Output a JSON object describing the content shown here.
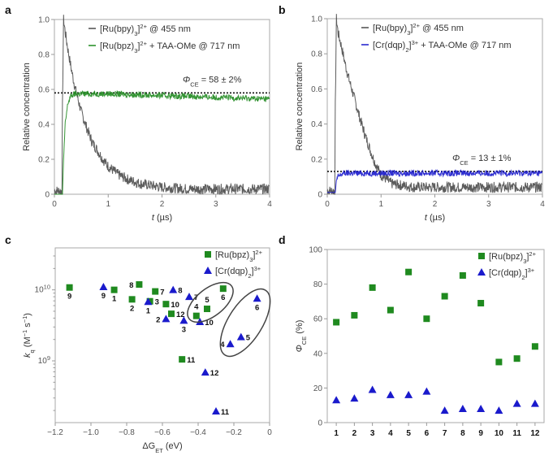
{
  "colors": {
    "gray": "#4a4a4a",
    "green": "#1f8a1f",
    "blue": "#1a1acc",
    "dotted": "#111111"
  },
  "chart_data": [
    {
      "panel": "a",
      "type": "line",
      "xlabel": [
        {
          "t": "t",
          "i": true
        },
        {
          "t": " (µs)"
        }
      ],
      "ylabel": [
        {
          "t": "Relative concentration"
        }
      ],
      "xlim": [
        0,
        4
      ],
      "ylim": [
        0,
        1.0
      ],
      "xticks": [
        0,
        1,
        2,
        3,
        4
      ],
      "xticklabels": [
        "0",
        "1",
        "2",
        "3",
        "4"
      ],
      "yticks": [
        0,
        0.2,
        0.4,
        0.6,
        0.8,
        1.0
      ],
      "yticklabels": [
        "0",
        "0.2",
        "0.4",
        "0.6",
        "0.8",
        "1.0"
      ],
      "legend_placement": "top",
      "annotation": {
        "text": [
          {
            "t": "Φ",
            "i": true
          },
          {
            "t": "CE",
            "sub": true
          },
          {
            "t": " = 58 ± 2%"
          }
        ],
        "level": 0.58
      },
      "x": [
        0,
        0.1,
        0.14,
        0.15,
        0.17,
        0.2,
        0.25,
        0.3,
        0.35,
        0.4,
        0.5,
        0.6,
        0.7,
        0.8,
        0.9,
        1.0,
        1.2,
        1.4,
        1.6,
        1.8,
        2.0,
        2.5,
        3.0,
        3.5,
        4.0
      ],
      "series": [
        {
          "name": [
            {
              "t": "[Ru(bpy)"
            },
            {
              "t": "3",
              "sub": true
            },
            {
              "t": "]"
            },
            {
              "t": "2+",
              "sup": true
            },
            {
              "t": " @ 455 nm"
            }
          ],
          "color": "gray",
          "values": [
            0.02,
            0.02,
            0.02,
            0.5,
            1.0,
            0.93,
            0.83,
            0.74,
            0.66,
            0.59,
            0.47,
            0.38,
            0.3,
            0.25,
            0.2,
            0.16,
            0.11,
            0.08,
            0.06,
            0.05,
            0.04,
            0.03,
            0.03,
            0.03,
            0.03
          ]
        },
        {
          "name": [
            {
              "t": "[Ru(bpz)"
            },
            {
              "t": "3",
              "sub": true
            },
            {
              "t": "]"
            },
            {
              "t": "2+",
              "sup": true
            },
            {
              "t": " + TAA-OMe @ 717 nm"
            }
          ],
          "color": "green",
          "values": [
            0,
            0,
            0,
            0,
            0.2,
            0.4,
            0.52,
            0.56,
            0.57,
            0.575,
            0.575,
            0.575,
            0.575,
            0.575,
            0.575,
            0.575,
            0.573,
            0.571,
            0.569,
            0.567,
            0.565,
            0.56,
            0.555,
            0.55,
            0.545
          ]
        }
      ]
    },
    {
      "panel": "b",
      "type": "line",
      "xlabel": [
        {
          "t": "t",
          "i": true
        },
        {
          "t": " (µs)"
        }
      ],
      "ylabel": [
        {
          "t": "Relative concentration"
        }
      ],
      "xlim": [
        0,
        4
      ],
      "ylim": [
        0,
        1.0
      ],
      "xticks": [
        0,
        1,
        2,
        3,
        4
      ],
      "xticklabels": [
        "0",
        "1",
        "2",
        "3",
        "4"
      ],
      "yticks": [
        0,
        0.2,
        0.4,
        0.6,
        0.8,
        1.0
      ],
      "yticklabels": [
        "0",
        "0.2",
        "0.4",
        "0.6",
        "0.8",
        "1.0"
      ],
      "legend_placement": "top",
      "annotation": {
        "text": [
          {
            "t": "Φ",
            "i": true
          },
          {
            "t": "CE",
            "sub": true
          },
          {
            "t": " = 13 ± 1%"
          }
        ],
        "level": 0.13
      },
      "x": [
        0,
        0.1,
        0.14,
        0.15,
        0.17,
        0.2,
        0.25,
        0.3,
        0.35,
        0.4,
        0.5,
        0.6,
        0.7,
        0.8,
        0.9,
        1.0,
        1.2,
        1.4,
        1.6,
        1.8,
        2.0,
        2.5,
        3.0,
        3.5,
        4.0
      ],
      "series": [
        {
          "name": [
            {
              "t": "[Ru(bpy)"
            },
            {
              "t": "3",
              "sub": true
            },
            {
              "t": "]"
            },
            {
              "t": "2+",
              "sup": true
            },
            {
              "t": " @ 455 nm"
            }
          ],
          "color": "gray",
          "values": [
            0.02,
            0.02,
            0.02,
            0.5,
            1.0,
            0.92,
            0.86,
            0.79,
            0.72,
            0.66,
            0.55,
            0.44,
            0.34,
            0.25,
            0.17,
            0.11,
            0.06,
            0.05,
            0.04,
            0.04,
            0.04,
            0.04,
            0.04,
            0.04,
            0.04
          ]
        },
        {
          "name": [
            {
              "t": "[Cr(dqp)"
            },
            {
              "t": "2",
              "sub": true
            },
            {
              "t": "]"
            },
            {
              "t": "3+",
              "sup": true
            },
            {
              "t": " + TAA-OMe @ 717 nm"
            }
          ],
          "color": "blue",
          "values": [
            0.01,
            0.01,
            0.01,
            0.01,
            0.08,
            0.1,
            0.11,
            0.12,
            0.12,
            0.12,
            0.12,
            0.12,
            0.12,
            0.12,
            0.12,
            0.12,
            0.12,
            0.12,
            0.12,
            0.12,
            0.12,
            0.12,
            0.12,
            0.12,
            0.12
          ]
        }
      ]
    },
    {
      "panel": "c",
      "type": "scatter",
      "xlabel": [
        {
          "t": "ΔG"
        },
        {
          "t": "ET",
          "sub": true
        },
        {
          "t": " (eV)"
        }
      ],
      "ylabel": [
        {
          "t": "k",
          "i": true
        },
        {
          "t": "q",
          "sub": true
        },
        {
          "t": " (M"
        },
        {
          "t": "−1",
          "sup": true
        },
        {
          "t": " s"
        },
        {
          "t": "−1",
          "sup": true
        },
        {
          "t": ")"
        }
      ],
      "xlim": [
        -1.2,
        0
      ],
      "ylim": [
        135000000.0,
        39000000000.0
      ],
      "yscale": "log",
      "xticks": [
        -1.2,
        -1.0,
        -0.8,
        -0.6,
        -0.4,
        -0.2,
        0
      ],
      "xticklabels": [
        "−1.2",
        "−1.0",
        "−0.8",
        "−0.6",
        "−0.4",
        "−0.2",
        "0"
      ],
      "yticks": [
        1000000000.0,
        10000000000.0
      ],
      "yticklabels": [
        [
          "10",
          "9"
        ],
        [
          "10",
          "10"
        ]
      ],
      "legend_placement": "top-right",
      "series": [
        {
          "name": [
            {
              "t": "[Ru(bpz)"
            },
            {
              "t": "3",
              "sub": true
            },
            {
              "t": "]"
            },
            {
              "t": "2+",
              "sup": true
            }
          ],
          "color": "green",
          "marker": "square",
          "points": [
            {
              "label": "9",
              "x": -1.12,
              "y": 10800000000.0,
              "label_pos": "below"
            },
            {
              "label": "1",
              "x": -0.87,
              "y": 10000000000.0,
              "label_pos": "below"
            },
            {
              "label": "8",
              "x": -0.73,
              "y": 11900000000.0,
              "label_pos": "left"
            },
            {
              "label": "2",
              "x": -0.77,
              "y": 7350000000.0,
              "label_pos": "below"
            },
            {
              "label": "3",
              "x": -0.67,
              "y": 6900000000.0,
              "label_pos": "right"
            },
            {
              "label": "7",
              "x": -0.64,
              "y": 9500000000.0,
              "label_pos": "right"
            },
            {
              "label": "10",
              "x": -0.58,
              "y": 6300000000.0,
              "label_pos": "right"
            },
            {
              "label": "12",
              "x": -0.55,
              "y": 4600000000.0,
              "label_pos": "right"
            },
            {
              "label": "11",
              "x": -0.49,
              "y": 1050000000.0,
              "label_pos": "right"
            },
            {
              "label": "4",
              "x": -0.41,
              "y": 4300000000.0,
              "label_pos": "above"
            },
            {
              "label": "5",
              "x": -0.35,
              "y": 5400000000.0,
              "label_pos": "above"
            },
            {
              "label": "6",
              "x": -0.26,
              "y": 10400000000.0,
              "label_pos": "below"
            }
          ]
        },
        {
          "name": [
            {
              "t": "[Cr(dqp)"
            },
            {
              "t": "2",
              "sub": true
            },
            {
              "t": "]"
            },
            {
              "t": "3+",
              "sup": true
            }
          ],
          "color": "blue",
          "marker": "triangle",
          "points": [
            {
              "label": "9",
              "x": -0.93,
              "y": 11000000000.0,
              "label_pos": "below"
            },
            {
              "label": "1",
              "x": -0.68,
              "y": 6800000000.0,
              "label_pos": "below"
            },
            {
              "label": "8",
              "x": -0.54,
              "y": 10000000000.0,
              "label_pos": "right"
            },
            {
              "label": "7",
              "x": -0.45,
              "y": 8000000000.0,
              "label_pos": "right"
            },
            {
              "label": "2",
              "x": -0.58,
              "y": 3900000000.0,
              "label_pos": "left"
            },
            {
              "label": "3",
              "x": -0.48,
              "y": 3700000000.0,
              "label_pos": "below"
            },
            {
              "label": "10",
              "x": -0.39,
              "y": 3550000000.0,
              "label_pos": "right"
            },
            {
              "label": "4",
              "x": -0.22,
              "y": 1730000000.0,
              "label_pos": "left"
            },
            {
              "label": "5",
              "x": -0.16,
              "y": 2170000000.0,
              "label_pos": "right"
            },
            {
              "label": "6",
              "x": -0.07,
              "y": 7550000000.0,
              "label_pos": "below"
            },
            {
              "label": "12",
              "x": -0.36,
              "y": 690000000.0,
              "label_pos": "right"
            },
            {
              "label": "11",
              "x": -0.3,
              "y": 195000000.0,
              "label_pos": "right"
            }
          ]
        }
      ]
    },
    {
      "panel": "d",
      "type": "scatter",
      "xlabel": [],
      "ylabel": [
        {
          "t": "Φ",
          "i": true
        },
        {
          "t": "CE",
          "sub": true
        },
        {
          "t": " (%)"
        }
      ],
      "xlim": [
        0.5,
        12.5
      ],
      "ylim": [
        0,
        100
      ],
      "categories": [
        "1",
        "2",
        "3",
        "4",
        "5",
        "6",
        "7",
        "8",
        "9",
        "10",
        "11",
        "12"
      ],
      "yticks": [
        0,
        20,
        40,
        60,
        80,
        100
      ],
      "yticklabels": [
        "0",
        "20",
        "40",
        "60",
        "80",
        "100"
      ],
      "legend_placement": "top-right",
      "series": [
        {
          "name": [
            {
              "t": "[Ru(bpz)"
            },
            {
              "t": "3",
              "sub": true
            },
            {
              "t": "]"
            },
            {
              "t": "2+",
              "sup": true
            }
          ],
          "color": "green",
          "marker": "square",
          "values": [
            58,
            62,
            78,
            65,
            87,
            60,
            73,
            85,
            69,
            35,
            37,
            44
          ]
        },
        {
          "name": [
            {
              "t": "[Cr(dqp)"
            },
            {
              "t": "2",
              "sub": true
            },
            {
              "t": "]"
            },
            {
              "t": "3+",
              "sup": true
            }
          ],
          "color": "blue",
          "marker": "triangle",
          "values": [
            13,
            14,
            19,
            16,
            16,
            18,
            7,
            8,
            8,
            7,
            11,
            11
          ]
        }
      ]
    }
  ]
}
